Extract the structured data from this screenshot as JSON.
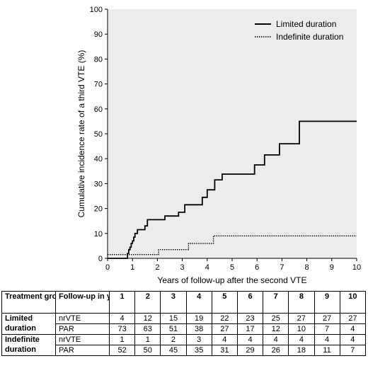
{
  "chart_data": {
    "type": "line",
    "step": true,
    "xlabel": "Years of follow-up after the second VTE",
    "ylabel": "Cumulative incidence rate of a third VTE (%)",
    "xlim": [
      0,
      10
    ],
    "ylim": [
      0,
      100
    ],
    "x_ticks": [
      0,
      1,
      2,
      3,
      4,
      5,
      6,
      7,
      8,
      9,
      10
    ],
    "y_ticks": [
      0,
      10,
      20,
      30,
      40,
      50,
      60,
      70,
      80,
      90,
      100
    ],
    "grid": false,
    "legend": "top-right",
    "plot_background": "#ececec",
    "series": [
      {
        "name": "Limited duration",
        "style": "solid",
        "color": "#000000",
        "x": [
          0,
          0.75,
          0.8,
          0.85,
          0.9,
          0.95,
          1.0,
          1.05,
          1.1,
          1.2,
          1.3,
          1.5,
          1.6,
          1.8,
          2.3,
          2.55,
          2.85,
          3.1,
          3.6,
          3.8,
          4.0,
          4.3,
          4.6,
          5.3,
          5.9,
          6.3,
          6.6,
          6.9,
          7.6,
          7.7,
          10.0
        ],
        "values": [
          0,
          0,
          2,
          3.5,
          4.5,
          6,
          7,
          8.5,
          10,
          11.5,
          11.5,
          13,
          15.5,
          15.5,
          17,
          17,
          18.5,
          21.5,
          21.5,
          24.5,
          27.5,
          31.5,
          33.8,
          33.8,
          37.5,
          41.5,
          41.5,
          46,
          46,
          55,
          55
        ]
      },
      {
        "name": "Indefinite duration",
        "style": "dotted",
        "color": "#000000",
        "x": [
          0,
          0.8,
          2.05,
          3.25,
          4.25,
          10.0
        ],
        "values": [
          1.5,
          1.5,
          3.5,
          6,
          9,
          9
        ]
      }
    ]
  },
  "table": {
    "header": {
      "group": "Treatment group",
      "followup": "Follow-up in years",
      "years": [
        "1",
        "2",
        "3",
        "4",
        "5",
        "6",
        "7",
        "8",
        "9",
        "10"
      ]
    },
    "groups": [
      {
        "name_line1": "Limited",
        "name_line2": "duration",
        "rows": [
          {
            "label": "nrVTE",
            "values": [
              "4",
              "12",
              "15",
              "19",
              "22",
              "23",
              "25",
              "27",
              "27",
              "27"
            ]
          },
          {
            "label": "PAR",
            "values": [
              "73",
              "63",
              "51",
              "38",
              "27",
              "17",
              "12",
              "10",
              "7",
              "4"
            ]
          }
        ]
      },
      {
        "name_line1": "Indefinite",
        "name_line2": "duration",
        "rows": [
          {
            "label": "nrVTE",
            "values": [
              "1",
              "1",
              "2",
              "3",
              "4",
              "4",
              "4",
              "4",
              "4",
              "4"
            ]
          },
          {
            "label": "PAR",
            "values": [
              "52",
              "50",
              "45",
              "35",
              "31",
              "29",
              "26",
              "18",
              "11",
              "7"
            ]
          }
        ]
      }
    ]
  }
}
